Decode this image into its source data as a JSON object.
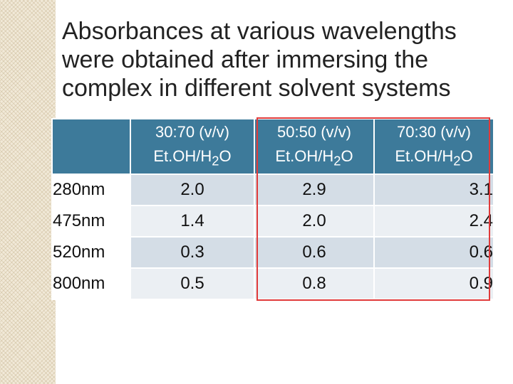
{
  "title": "Absorbances at various wavelengths were obtained after immersing the complex in different solvent systems",
  "table": {
    "headers": [
      {
        "ratio": "30:70 (v/v)",
        "solvent_pre": "Et.OH/H",
        "solvent_sub": "2",
        "solvent_post": "O"
      },
      {
        "ratio": "50:50 (v/v)",
        "solvent_pre": "Et.OH/H",
        "solvent_sub": "2",
        "solvent_post": "O"
      },
      {
        "ratio": "70:30 (v/v)",
        "solvent_pre": "Et.OH/H",
        "solvent_sub": "2",
        "solvent_post": "O"
      }
    ],
    "rows": [
      {
        "wavelength": "280nm",
        "values": [
          "2.0",
          "2.9",
          "3.1"
        ]
      },
      {
        "wavelength": "475nm",
        "values": [
          "1.4",
          "2.0",
          "2.4"
        ]
      },
      {
        "wavelength": "520nm",
        "values": [
          "0.3",
          "0.6",
          "0.6"
        ]
      },
      {
        "wavelength": "800nm",
        "values": [
          "0.5",
          "0.8",
          "0.9"
        ]
      }
    ]
  },
  "colors": {
    "header_bg": "#3d7a9a",
    "row_odd": "#d4dde6",
    "row_even": "#ebeff3",
    "highlight": "#e03a3a"
  }
}
